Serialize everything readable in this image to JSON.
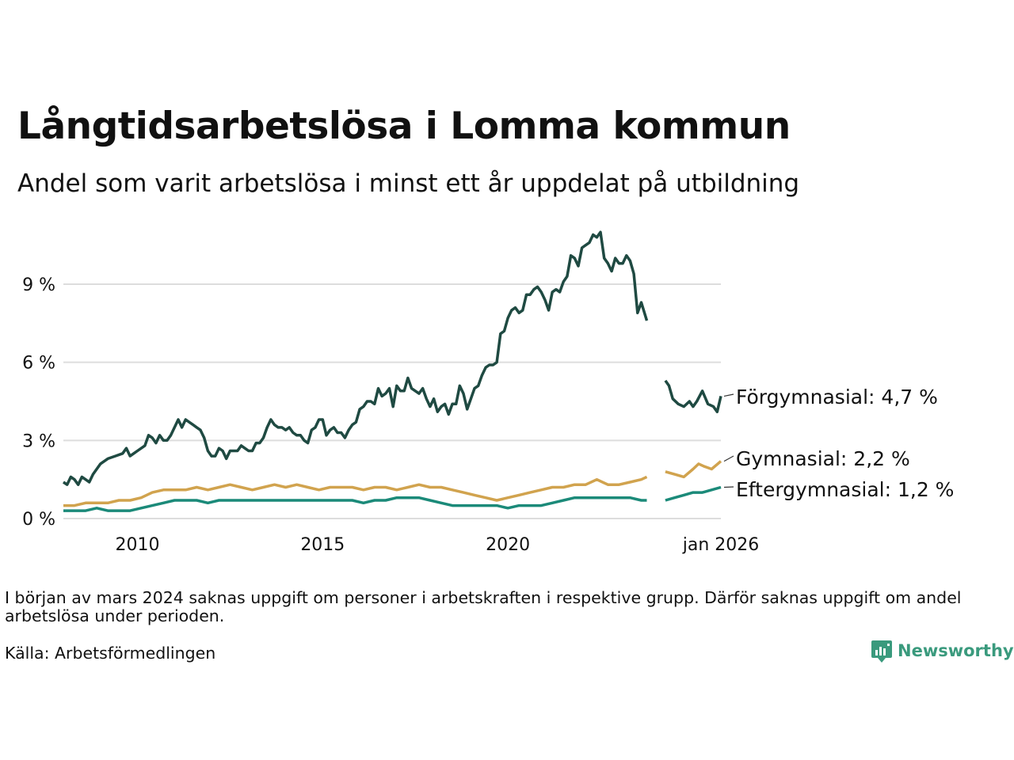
{
  "title": "Långtidsarbetslösa i Lomma kommun",
  "subtitle": "Andel som varit arbetslösa i minst ett år uppdelat på utbildning",
  "note": "I början av mars 2024 saknas uppgift om personer i arbetskraften i respektive grupp. Därför saknas uppgift om andel arbetslösa under perioden.",
  "source": "Källa: Arbetsförmedlingen",
  "logo": "Newsworthy",
  "chart_data": {
    "type": "line",
    "title": "Långtidsarbetslösa i Lomma kommun",
    "ylabel": "",
    "xlabel": "",
    "xlim": [
      2008.0,
      2026.0
    ],
    "ylim": [
      0,
      11
    ],
    "yticks": [
      {
        "value": 0,
        "label": "0 %"
      },
      {
        "value": 3,
        "label": "3 %"
      },
      {
        "value": 6,
        "label": "6 %"
      },
      {
        "value": 9,
        "label": "9 %"
      }
    ],
    "xticks": [
      {
        "value": 2010,
        "label": "2010"
      },
      {
        "value": 2015,
        "label": "2015"
      },
      {
        "value": 2020,
        "label": "2020"
      },
      {
        "value": 2026,
        "label": "jan 2026"
      }
    ],
    "gap": [
      2023.75,
      2024.25
    ],
    "series": [
      {
        "name": "Förgymnasial",
        "label": "Förgymnasial: 4,7 %",
        "color": "#1f4a42",
        "points": [
          [
            2008.0,
            1.4
          ],
          [
            2008.1,
            1.3
          ],
          [
            2008.2,
            1.6
          ],
          [
            2008.3,
            1.5
          ],
          [
            2008.4,
            1.3
          ],
          [
            2008.5,
            1.6
          ],
          [
            2008.6,
            1.5
          ],
          [
            2008.7,
            1.4
          ],
          [
            2008.8,
            1.7
          ],
          [
            2008.9,
            1.9
          ],
          [
            2009.0,
            2.1
          ],
          [
            2009.2,
            2.3
          ],
          [
            2009.4,
            2.4
          ],
          [
            2009.6,
            2.5
          ],
          [
            2009.7,
            2.7
          ],
          [
            2009.8,
            2.4
          ],
          [
            2009.9,
            2.5
          ],
          [
            2010.0,
            2.6
          ],
          [
            2010.2,
            2.8
          ],
          [
            2010.3,
            3.2
          ],
          [
            2010.4,
            3.1
          ],
          [
            2010.5,
            2.9
          ],
          [
            2010.6,
            3.2
          ],
          [
            2010.7,
            3.0
          ],
          [
            2010.8,
            3.0
          ],
          [
            2010.9,
            3.2
          ],
          [
            2011.0,
            3.5
          ],
          [
            2011.1,
            3.8
          ],
          [
            2011.2,
            3.5
          ],
          [
            2011.3,
            3.8
          ],
          [
            2011.4,
            3.7
          ],
          [
            2011.5,
            3.6
          ],
          [
            2011.6,
            3.5
          ],
          [
            2011.7,
            3.4
          ],
          [
            2011.8,
            3.1
          ],
          [
            2011.9,
            2.6
          ],
          [
            2012.0,
            2.4
          ],
          [
            2012.1,
            2.4
          ],
          [
            2012.2,
            2.7
          ],
          [
            2012.3,
            2.6
          ],
          [
            2012.4,
            2.3
          ],
          [
            2012.5,
            2.6
          ],
          [
            2012.6,
            2.6
          ],
          [
            2012.7,
            2.6
          ],
          [
            2012.8,
            2.8
          ],
          [
            2012.9,
            2.7
          ],
          [
            2013.0,
            2.6
          ],
          [
            2013.1,
            2.6
          ],
          [
            2013.2,
            2.9
          ],
          [
            2013.3,
            2.9
          ],
          [
            2013.4,
            3.1
          ],
          [
            2013.5,
            3.5
          ],
          [
            2013.6,
            3.8
          ],
          [
            2013.7,
            3.6
          ],
          [
            2013.8,
            3.5
          ],
          [
            2013.9,
            3.5
          ],
          [
            2014.0,
            3.4
          ],
          [
            2014.1,
            3.5
          ],
          [
            2014.2,
            3.3
          ],
          [
            2014.3,
            3.2
          ],
          [
            2014.4,
            3.2
          ],
          [
            2014.5,
            3.0
          ],
          [
            2014.6,
            2.9
          ],
          [
            2014.7,
            3.4
          ],
          [
            2014.8,
            3.5
          ],
          [
            2014.9,
            3.8
          ],
          [
            2015.0,
            3.8
          ],
          [
            2015.1,
            3.2
          ],
          [
            2015.2,
            3.4
          ],
          [
            2015.3,
            3.5
          ],
          [
            2015.4,
            3.3
          ],
          [
            2015.5,
            3.3
          ],
          [
            2015.6,
            3.1
          ],
          [
            2015.7,
            3.4
          ],
          [
            2015.8,
            3.6
          ],
          [
            2015.9,
            3.7
          ],
          [
            2016.0,
            4.2
          ],
          [
            2016.1,
            4.3
          ],
          [
            2016.2,
            4.5
          ],
          [
            2016.3,
            4.5
          ],
          [
            2016.4,
            4.4
          ],
          [
            2016.5,
            5.0
          ],
          [
            2016.6,
            4.7
          ],
          [
            2016.7,
            4.8
          ],
          [
            2016.8,
            5.0
          ],
          [
            2016.9,
            4.3
          ],
          [
            2017.0,
            5.1
          ],
          [
            2017.1,
            4.9
          ],
          [
            2017.2,
            4.9
          ],
          [
            2017.3,
            5.4
          ],
          [
            2017.4,
            5.0
          ],
          [
            2017.5,
            4.9
          ],
          [
            2017.6,
            4.8
          ],
          [
            2017.7,
            5.0
          ],
          [
            2017.8,
            4.6
          ],
          [
            2017.9,
            4.3
          ],
          [
            2018.0,
            4.6
          ],
          [
            2018.1,
            4.1
          ],
          [
            2018.2,
            4.3
          ],
          [
            2018.3,
            4.4
          ],
          [
            2018.4,
            4.0
          ],
          [
            2018.5,
            4.4
          ],
          [
            2018.6,
            4.4
          ],
          [
            2018.7,
            5.1
          ],
          [
            2018.8,
            4.8
          ],
          [
            2018.9,
            4.2
          ],
          [
            2019.0,
            4.6
          ],
          [
            2019.1,
            5.0
          ],
          [
            2019.2,
            5.1
          ],
          [
            2019.3,
            5.5
          ],
          [
            2019.4,
            5.8
          ],
          [
            2019.5,
            5.9
          ],
          [
            2019.6,
            5.9
          ],
          [
            2019.7,
            6.0
          ],
          [
            2019.8,
            7.1
          ],
          [
            2019.9,
            7.2
          ],
          [
            2020.0,
            7.7
          ],
          [
            2020.1,
            8.0
          ],
          [
            2020.2,
            8.1
          ],
          [
            2020.3,
            7.9
          ],
          [
            2020.4,
            8.0
          ],
          [
            2020.5,
            8.6
          ],
          [
            2020.6,
            8.6
          ],
          [
            2020.7,
            8.8
          ],
          [
            2020.8,
            8.9
          ],
          [
            2020.9,
            8.7
          ],
          [
            2021.0,
            8.4
          ],
          [
            2021.1,
            8.0
          ],
          [
            2021.2,
            8.7
          ],
          [
            2021.3,
            8.8
          ],
          [
            2021.4,
            8.7
          ],
          [
            2021.5,
            9.1
          ],
          [
            2021.6,
            9.3
          ],
          [
            2021.7,
            10.1
          ],
          [
            2021.8,
            10.0
          ],
          [
            2021.9,
            9.7
          ],
          [
            2022.0,
            10.4
          ],
          [
            2022.1,
            10.5
          ],
          [
            2022.2,
            10.6
          ],
          [
            2022.3,
            10.9
          ],
          [
            2022.4,
            10.8
          ],
          [
            2022.5,
            11.0
          ],
          [
            2022.6,
            10.0
          ],
          [
            2022.7,
            9.8
          ],
          [
            2022.8,
            9.5
          ],
          [
            2022.9,
            10.0
          ],
          [
            2023.0,
            9.8
          ],
          [
            2023.1,
            9.8
          ],
          [
            2023.2,
            10.1
          ],
          [
            2023.3,
            9.9
          ],
          [
            2023.4,
            9.4
          ],
          [
            2023.5,
            7.9
          ],
          [
            2023.6,
            8.3
          ],
          [
            2023.75,
            7.6
          ]
        ]
      },
      {
        "name": "Gymnasial",
        "label": "Gymnasial: 2,2 %",
        "color": "#d1a34e",
        "points": [
          [
            2008.0,
            0.5
          ],
          [
            2008.3,
            0.5
          ],
          [
            2008.6,
            0.6
          ],
          [
            2008.9,
            0.6
          ],
          [
            2009.2,
            0.6
          ],
          [
            2009.5,
            0.7
          ],
          [
            2009.8,
            0.7
          ],
          [
            2010.1,
            0.8
          ],
          [
            2010.4,
            1.0
          ],
          [
            2010.7,
            1.1
          ],
          [
            2011.0,
            1.1
          ],
          [
            2011.3,
            1.1
          ],
          [
            2011.6,
            1.2
          ],
          [
            2011.9,
            1.1
          ],
          [
            2012.2,
            1.2
          ],
          [
            2012.5,
            1.3
          ],
          [
            2012.8,
            1.2
          ],
          [
            2013.1,
            1.1
          ],
          [
            2013.4,
            1.2
          ],
          [
            2013.7,
            1.3
          ],
          [
            2014.0,
            1.2
          ],
          [
            2014.3,
            1.3
          ],
          [
            2014.6,
            1.2
          ],
          [
            2014.9,
            1.1
          ],
          [
            2015.2,
            1.2
          ],
          [
            2015.5,
            1.2
          ],
          [
            2015.8,
            1.2
          ],
          [
            2016.1,
            1.1
          ],
          [
            2016.4,
            1.2
          ],
          [
            2016.7,
            1.2
          ],
          [
            2017.0,
            1.1
          ],
          [
            2017.3,
            1.2
          ],
          [
            2017.6,
            1.3
          ],
          [
            2017.9,
            1.2
          ],
          [
            2018.2,
            1.2
          ],
          [
            2018.5,
            1.1
          ],
          [
            2018.8,
            1.0
          ],
          [
            2019.1,
            0.9
          ],
          [
            2019.4,
            0.8
          ],
          [
            2019.7,
            0.7
          ],
          [
            2020.0,
            0.8
          ],
          [
            2020.3,
            0.9
          ],
          [
            2020.6,
            1.0
          ],
          [
            2020.9,
            1.1
          ],
          [
            2021.2,
            1.2
          ],
          [
            2021.5,
            1.2
          ],
          [
            2021.8,
            1.3
          ],
          [
            2022.1,
            1.3
          ],
          [
            2022.4,
            1.5
          ],
          [
            2022.7,
            1.3
          ],
          [
            2023.0,
            1.3
          ],
          [
            2023.3,
            1.4
          ],
          [
            2023.6,
            1.5
          ],
          [
            2023.75,
            1.6
          ]
        ]
      },
      {
        "name": "Eftergymnasial",
        "label": "Eftergymnasial: 1,2 %",
        "color": "#1b8a79",
        "points": [
          [
            2008.0,
            0.3
          ],
          [
            2008.3,
            0.3
          ],
          [
            2008.6,
            0.3
          ],
          [
            2008.9,
            0.4
          ],
          [
            2009.2,
            0.3
          ],
          [
            2009.5,
            0.3
          ],
          [
            2009.8,
            0.3
          ],
          [
            2010.1,
            0.4
          ],
          [
            2010.4,
            0.5
          ],
          [
            2010.7,
            0.6
          ],
          [
            2011.0,
            0.7
          ],
          [
            2011.3,
            0.7
          ],
          [
            2011.6,
            0.7
          ],
          [
            2011.9,
            0.6
          ],
          [
            2012.2,
            0.7
          ],
          [
            2012.5,
            0.7
          ],
          [
            2012.8,
            0.7
          ],
          [
            2013.1,
            0.7
          ],
          [
            2013.4,
            0.7
          ],
          [
            2013.7,
            0.7
          ],
          [
            2014.0,
            0.7
          ],
          [
            2014.3,
            0.7
          ],
          [
            2014.6,
            0.7
          ],
          [
            2014.9,
            0.7
          ],
          [
            2015.2,
            0.7
          ],
          [
            2015.5,
            0.7
          ],
          [
            2015.8,
            0.7
          ],
          [
            2016.1,
            0.6
          ],
          [
            2016.4,
            0.7
          ],
          [
            2016.7,
            0.7
          ],
          [
            2017.0,
            0.8
          ],
          [
            2017.3,
            0.8
          ],
          [
            2017.6,
            0.8
          ],
          [
            2017.9,
            0.7
          ],
          [
            2018.2,
            0.6
          ],
          [
            2018.5,
            0.5
          ],
          [
            2018.8,
            0.5
          ],
          [
            2019.1,
            0.5
          ],
          [
            2019.4,
            0.5
          ],
          [
            2019.7,
            0.5
          ],
          [
            2020.0,
            0.4
          ],
          [
            2020.3,
            0.5
          ],
          [
            2020.6,
            0.5
          ],
          [
            2020.9,
            0.5
          ],
          [
            2021.2,
            0.6
          ],
          [
            2021.5,
            0.7
          ],
          [
            2021.8,
            0.8
          ],
          [
            2022.1,
            0.8
          ],
          [
            2022.4,
            0.8
          ],
          [
            2022.7,
            0.8
          ],
          [
            2023.0,
            0.8
          ],
          [
            2023.3,
            0.8
          ],
          [
            2023.6,
            0.7
          ],
          [
            2023.75,
            0.7
          ]
        ]
      }
    ]
  }
}
